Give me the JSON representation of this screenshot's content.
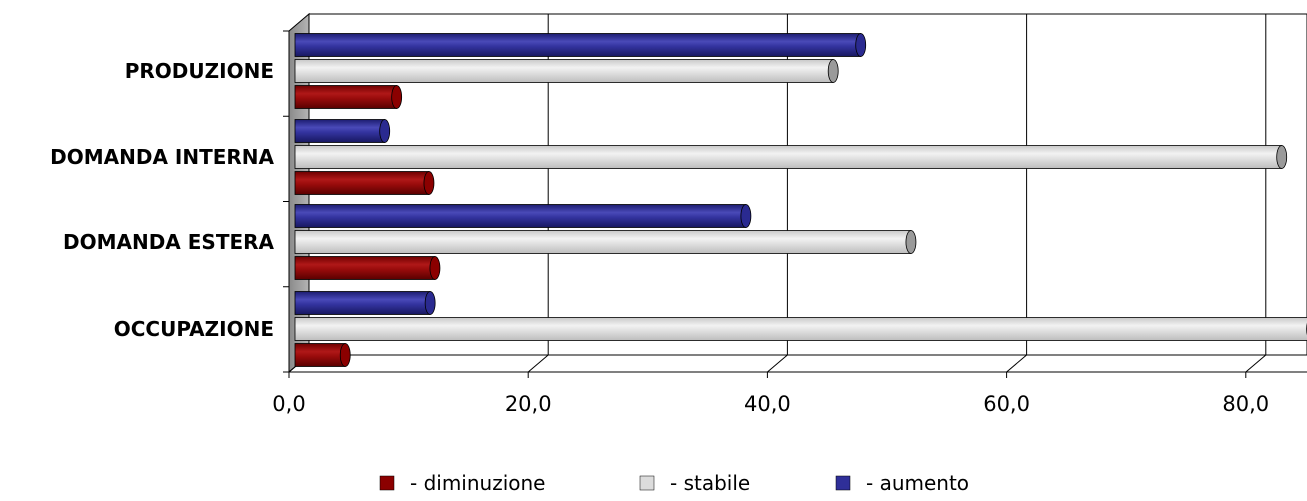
{
  "chart_data": {
    "type": "bar",
    "orientation": "horizontal",
    "categories": [
      "PRODUZIONE",
      "DOMANDA INTERNA",
      "DOMANDA ESTERA",
      "OCCUPAZIONE"
    ],
    "series": [
      {
        "name": "- diminuzione",
        "color": "#8b0000",
        "values": [
          8.5,
          11.2,
          11.7,
          4.2
        ]
      },
      {
        "name": "- stabile",
        "color": "#dcdcdc",
        "values": [
          45.0,
          82.5,
          51.5,
          85.0
        ]
      },
      {
        "name": "- aumento",
        "color": "#2f2f99",
        "values": [
          47.3,
          7.5,
          37.7,
          11.3
        ]
      }
    ],
    "xlim": [
      0,
      85
    ],
    "xticks": [
      "0,0",
      "20,0",
      "40,0",
      "60,0",
      "80,0"
    ],
    "title": "",
    "xlabel": "",
    "ylabel": "",
    "grid": true,
    "legend_position": "bottom"
  }
}
